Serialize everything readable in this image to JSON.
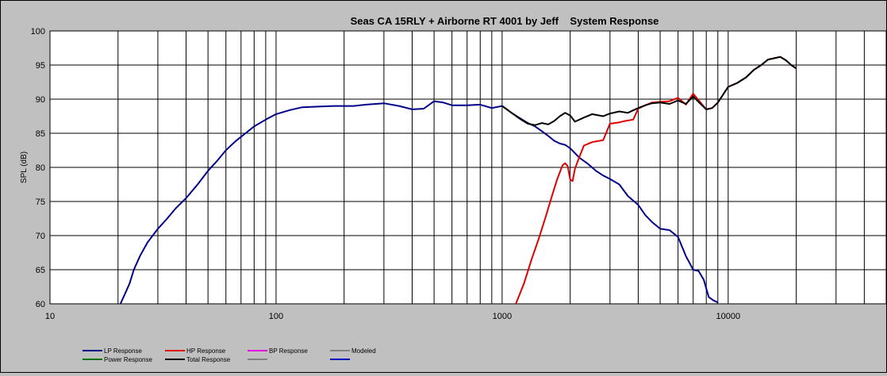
{
  "chart_data": {
    "type": "line",
    "title": "Seas CA 15RLY + Airborne RT 4001 by Jeff    System Response",
    "xlabel": "",
    "ylabel": "SPL (dB)",
    "x_scale": "log",
    "xlim": [
      10,
      50000
    ],
    "ylim": [
      60,
      100
    ],
    "grid": true,
    "legend_position": "bottom",
    "x_tick_labels": [
      {
        "value": 10,
        "label": "10"
      },
      {
        "value": 100,
        "label": "100"
      },
      {
        "value": 1000,
        "label": "1000"
      },
      {
        "value": 10000,
        "label": "10000"
      }
    ],
    "y_ticks": [
      60,
      65,
      70,
      75,
      80,
      85,
      90,
      95,
      100
    ],
    "series": [
      {
        "name": "LP Response",
        "color": "#00008b",
        "points": [
          [
            20.5,
            60
          ],
          [
            21.5,
            61.5
          ],
          [
            22.5,
            63
          ],
          [
            23.5,
            65
          ],
          [
            25,
            67
          ],
          [
            27,
            69
          ],
          [
            30,
            71
          ],
          [
            33,
            72.5
          ],
          [
            36,
            74
          ],
          [
            40,
            75.5
          ],
          [
            45,
            77.5
          ],
          [
            50,
            79.5
          ],
          [
            55,
            81
          ],
          [
            60,
            82.5
          ],
          [
            66,
            83.8
          ],
          [
            72,
            84.8
          ],
          [
            80,
            86
          ],
          [
            90,
            87
          ],
          [
            100,
            87.8
          ],
          [
            115,
            88.4
          ],
          [
            130,
            88.8
          ],
          [
            150,
            88.9
          ],
          [
            180,
            89
          ],
          [
            220,
            89
          ],
          [
            250,
            89.2
          ],
          [
            300,
            89.4
          ],
          [
            350,
            89
          ],
          [
            400,
            88.5
          ],
          [
            450,
            88.6
          ],
          [
            500,
            89.7
          ],
          [
            550,
            89.5
          ],
          [
            600,
            89.1
          ],
          [
            700,
            89.1
          ],
          [
            800,
            89.2
          ],
          [
            900,
            88.7
          ],
          [
            1000,
            89
          ],
          [
            1100,
            88
          ],
          [
            1200,
            87.2
          ],
          [
            1300,
            86.5
          ],
          [
            1400,
            86
          ],
          [
            1500,
            85.3
          ],
          [
            1600,
            84.6
          ],
          [
            1700,
            83.9
          ],
          [
            1800,
            83.5
          ],
          [
            1900,
            83.3
          ],
          [
            2000,
            82.8
          ],
          [
            2200,
            81.4
          ],
          [
            2400,
            80.5
          ],
          [
            2600,
            79.5
          ],
          [
            2800,
            78.8
          ],
          [
            3000,
            78.3
          ],
          [
            3300,
            77.5
          ],
          [
            3600,
            75.8
          ],
          [
            4000,
            74.5
          ],
          [
            4300,
            73
          ],
          [
            4600,
            72
          ],
          [
            5000,
            71
          ],
          [
            5500,
            70.8
          ],
          [
            6000,
            69.8
          ],
          [
            6500,
            67
          ],
          [
            7000,
            65
          ],
          [
            7400,
            64.8
          ],
          [
            7800,
            63.5
          ],
          [
            8200,
            61
          ],
          [
            8600,
            60.5
          ],
          [
            9000,
            60.2
          ]
        ]
      },
      {
        "name": "HP Response",
        "color": "#e00000",
        "points": [
          [
            1150,
            60
          ],
          [
            1250,
            63
          ],
          [
            1350,
            66.5
          ],
          [
            1450,
            69.5
          ],
          [
            1550,
            72.5
          ],
          [
            1650,
            75.5
          ],
          [
            1750,
            78.2
          ],
          [
            1850,
            80.3
          ],
          [
            1900,
            80.6
          ],
          [
            1950,
            80.2
          ],
          [
            2000,
            78.2
          ],
          [
            2050,
            78
          ],
          [
            2100,
            79.8
          ],
          [
            2200,
            81.6
          ],
          [
            2300,
            83.2
          ],
          [
            2500,
            83.7
          ],
          [
            2800,
            84
          ],
          [
            3000,
            86.4
          ],
          [
            3300,
            86.6
          ],
          [
            3500,
            86.8
          ],
          [
            3800,
            87
          ],
          [
            4000,
            88.6
          ],
          [
            4300,
            89.1
          ],
          [
            4600,
            89.5
          ],
          [
            5000,
            89.6
          ],
          [
            5500,
            89.7
          ],
          [
            6000,
            90.2
          ],
          [
            6500,
            89.2
          ],
          [
            7000,
            90.8
          ],
          [
            7500,
            89.6
          ],
          [
            8000,
            88.5
          ],
          [
            8500,
            88.7
          ],
          [
            9000,
            89.5
          ],
          [
            10000,
            91.8
          ],
          [
            11000,
            92.4
          ],
          [
            12000,
            93.2
          ],
          [
            13000,
            94.3
          ],
          [
            14000,
            95
          ],
          [
            15000,
            95.8
          ],
          [
            16000,
            96
          ],
          [
            17000,
            96.2
          ],
          [
            18000,
            95.7
          ],
          [
            19000,
            95
          ],
          [
            20000,
            94.5
          ]
        ]
      },
      {
        "name": "BP Response",
        "color": "#e000e0",
        "points": []
      },
      {
        "name": "Modeled",
        "color": "#808080",
        "points": []
      },
      {
        "name": "Power Response",
        "color": "#007000",
        "points": []
      },
      {
        "name": "Total Response",
        "color": "#000000",
        "points": [
          [
            1000,
            89
          ],
          [
            1100,
            88
          ],
          [
            1200,
            87.1
          ],
          [
            1300,
            86.4
          ],
          [
            1400,
            86.2
          ],
          [
            1500,
            86.5
          ],
          [
            1600,
            86.3
          ],
          [
            1700,
            86.8
          ],
          [
            1800,
            87.5
          ],
          [
            1900,
            88
          ],
          [
            2000,
            87.6
          ],
          [
            2100,
            86.7
          ],
          [
            2300,
            87.3
          ],
          [
            2500,
            87.8
          ],
          [
            2800,
            87.5
          ],
          [
            3000,
            87.9
          ],
          [
            3300,
            88.2
          ],
          [
            3600,
            88
          ],
          [
            4000,
            88.7
          ],
          [
            4300,
            89.1
          ],
          [
            4600,
            89.4
          ],
          [
            5000,
            89.5
          ],
          [
            5500,
            89.3
          ],
          [
            6000,
            89.8
          ],
          [
            6500,
            89.3
          ],
          [
            7000,
            90.4
          ],
          [
            7500,
            89.4
          ],
          [
            8000,
            88.5
          ],
          [
            8500,
            88.7
          ],
          [
            9000,
            89.5
          ],
          [
            10000,
            91.8
          ],
          [
            11000,
            92.4
          ],
          [
            12000,
            93.2
          ],
          [
            13000,
            94.3
          ],
          [
            14000,
            95
          ],
          [
            15000,
            95.8
          ],
          [
            16000,
            96
          ],
          [
            17000,
            96.2
          ],
          [
            18000,
            95.7
          ],
          [
            19000,
            95
          ],
          [
            20000,
            94.5
          ]
        ]
      },
      {
        "name": "",
        "color": "#808080",
        "points": []
      },
      {
        "name": "",
        "color": "#0000c0",
        "points": []
      }
    ]
  }
}
